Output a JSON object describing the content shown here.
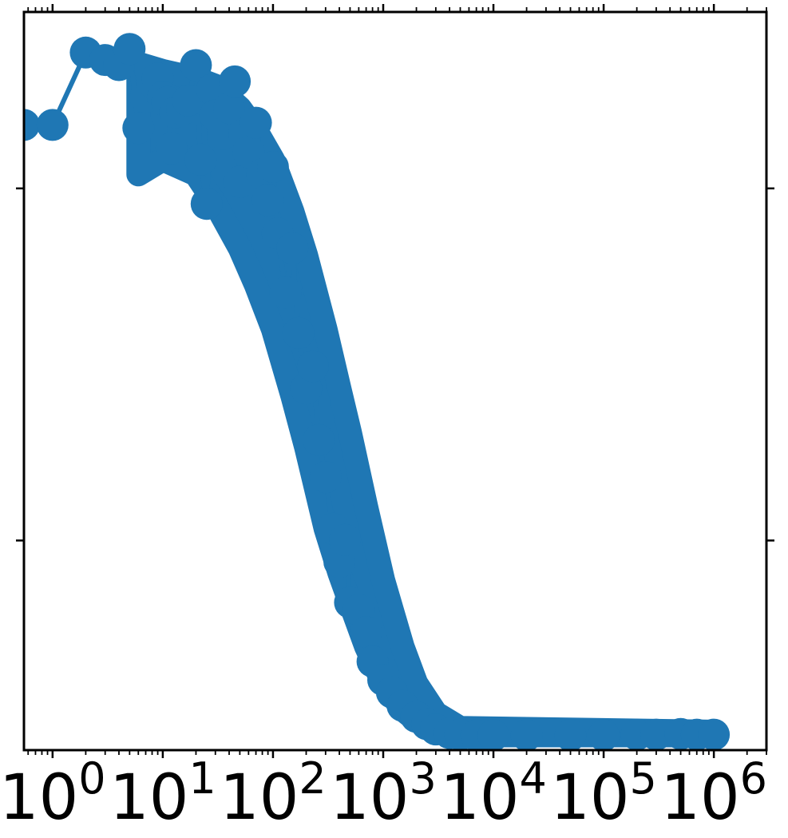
{
  "chart_data": {
    "type": "scatter",
    "title": "",
    "xlabel": "",
    "ylabel": "",
    "x_scale": "log",
    "xlim": [
      0.55,
      3000000
    ],
    "ylim": [
      0,
      1
    ],
    "grid": false,
    "legend": "none",
    "series_color": "#1f77b4",
    "x_ticks": [
      {
        "value": 1,
        "base": "10",
        "exp": "0"
      },
      {
        "value": 10,
        "base": "10",
        "exp": "1"
      },
      {
        "value": 100,
        "base": "10",
        "exp": "2"
      },
      {
        "value": 1000,
        "base": "10",
        "exp": "3"
      },
      {
        "value": 10000,
        "base": "10",
        "exp": "4"
      },
      {
        "value": 100000,
        "base": "10",
        "exp": "5"
      },
      {
        "value": 1000000,
        "base": "10",
        "exp": "6"
      }
    ],
    "y_ticks": [
      0.284,
      0.761
    ],
    "points": [
      [
        0.55,
        0.847
      ],
      [
        1,
        0.847
      ],
      [
        2,
        0.945
      ],
      [
        3,
        0.935
      ],
      [
        4,
        0.928
      ],
      [
        5,
        0.95
      ],
      [
        6,
        0.843
      ],
      [
        7,
        0.885
      ],
      [
        8,
        0.905
      ],
      [
        9,
        0.91
      ],
      [
        10,
        0.885
      ],
      [
        11,
        0.878
      ],
      [
        12,
        0.815
      ],
      [
        13,
        0.864
      ],
      [
        15,
        0.868
      ],
      [
        17,
        0.88
      ],
      [
        20,
        0.928
      ],
      [
        22,
        0.8
      ],
      [
        25,
        0.74
      ],
      [
        28,
        0.895
      ],
      [
        30,
        0.86
      ],
      [
        35,
        0.835
      ],
      [
        40,
        0.87
      ],
      [
        45,
        0.906
      ],
      [
        50,
        0.77
      ],
      [
        55,
        0.835
      ],
      [
        60,
        0.81
      ],
      [
        70,
        0.85
      ],
      [
        80,
        0.78
      ],
      [
        90,
        0.745
      ],
      [
        100,
        0.79
      ],
      [
        110,
        0.7
      ],
      [
        130,
        0.62
      ],
      [
        150,
        0.68
      ],
      [
        170,
        0.565
      ],
      [
        200,
        0.49
      ],
      [
        230,
        0.52
      ],
      [
        260,
        0.42
      ],
      [
        300,
        0.37
      ],
      [
        350,
        0.3
      ],
      [
        400,
        0.255
      ],
      [
        450,
        0.285
      ],
      [
        500,
        0.2
      ],
      [
        600,
        0.19
      ],
      [
        700,
        0.16
      ],
      [
        800,
        0.12
      ],
      [
        1000,
        0.095
      ],
      [
        1200,
        0.078
      ],
      [
        1500,
        0.06
      ],
      [
        2000,
        0.045
      ],
      [
        2500,
        0.035
      ],
      [
        3000,
        0.028
      ],
      [
        4000,
        0.023
      ],
      [
        5000,
        0.021
      ],
      [
        7000,
        0.02
      ],
      [
        10000,
        0.02
      ],
      [
        20000,
        0.02
      ],
      [
        50000,
        0.02
      ],
      [
        100000,
        0.02
      ],
      [
        200000,
        0.021
      ],
      [
        300000,
        0.021
      ],
      [
        500000,
        0.022
      ],
      [
        700000,
        0.021
      ],
      [
        1000000,
        0.021
      ]
    ],
    "band": [
      [
        6,
        0.78,
        0.93
      ],
      [
        10,
        0.8,
        0.92
      ],
      [
        20,
        0.78,
        0.91
      ],
      [
        30,
        0.74,
        0.9
      ],
      [
        50,
        0.68,
        0.87
      ],
      [
        70,
        0.63,
        0.84
      ],
      [
        100,
        0.57,
        0.8
      ],
      [
        150,
        0.48,
        0.73
      ],
      [
        200,
        0.41,
        0.67
      ],
      [
        300,
        0.3,
        0.57
      ],
      [
        400,
        0.24,
        0.49
      ],
      [
        500,
        0.2,
        0.43
      ],
      [
        700,
        0.14,
        0.33
      ],
      [
        1000,
        0.09,
        0.23
      ],
      [
        1500,
        0.055,
        0.14
      ],
      [
        2000,
        0.04,
        0.09
      ],
      [
        3000,
        0.027,
        0.05
      ],
      [
        5000,
        0.02,
        0.03
      ],
      [
        1000000,
        0.02,
        0.025
      ]
    ]
  }
}
